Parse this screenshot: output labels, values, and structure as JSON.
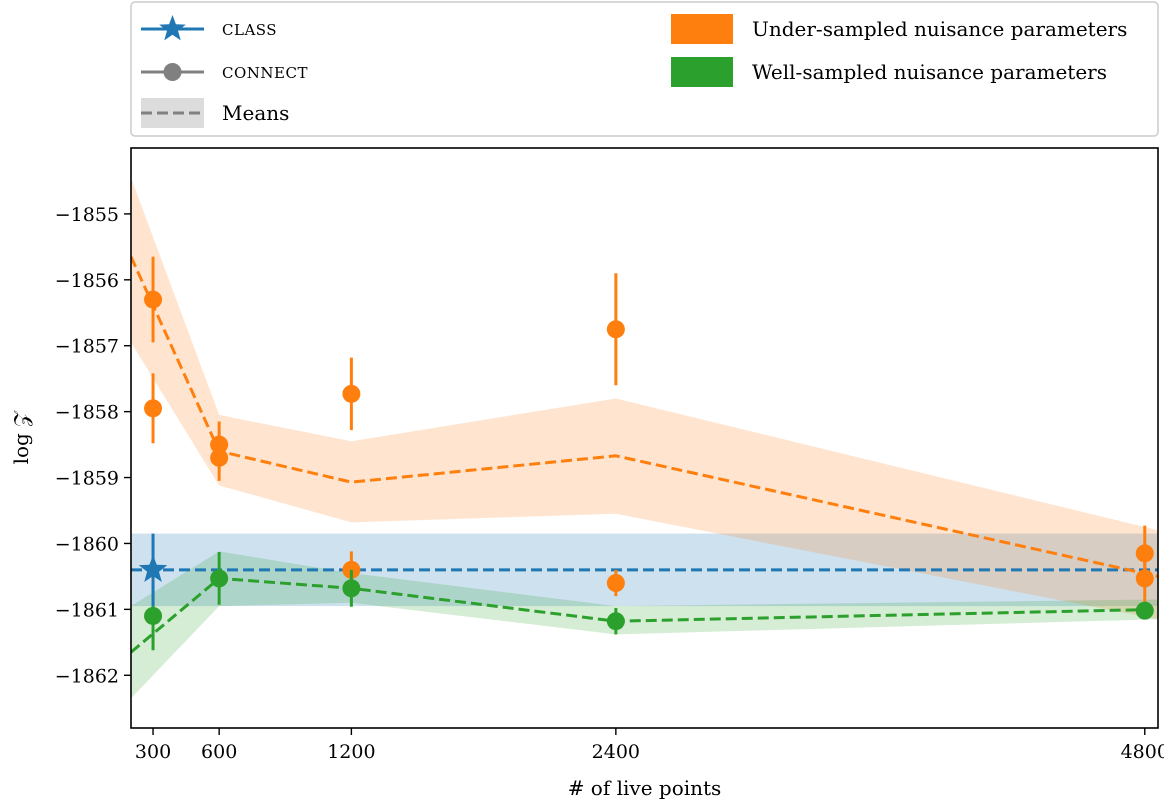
{
  "chart_data": {
    "type": "line",
    "xlabel": "# of live points",
    "ylabel": "log 𝒵",
    "xlim": [
      200,
      4860
    ],
    "ylim": [
      -1862.8,
      -1854.0
    ],
    "xticks": [
      300,
      600,
      1200,
      2400,
      4800
    ],
    "xtick_labels": [
      "300",
      "600",
      "1200",
      "2400",
      "4800"
    ],
    "yticks": [
      -1855,
      -1856,
      -1857,
      -1858,
      -1859,
      -1860,
      -1861,
      -1862
    ],
    "ytick_labels": [
      "−1855",
      "−1856",
      "−1857",
      "−1858",
      "−1859",
      "−1860",
      "−1861",
      "−1862"
    ],
    "grid": false,
    "legend_position": "top, above plot",
    "legend": {
      "class_label": "CLASS",
      "connect_label": "CONNECT",
      "means_label": "Means",
      "under_label": "Under-sampled nuisance parameters",
      "well_label": "Well-sampled nuisance parameters"
    },
    "colors": {
      "class": "#1f77b4",
      "under": "#ff7f0e",
      "well": "#2ca02c",
      "connect_legend": "#808080",
      "means_legend": "#808080"
    },
    "class_point": {
      "x": 300,
      "y": -1860.4,
      "yerr": 0.55
    },
    "class_mean": {
      "y": -1860.4,
      "band": [
        -1860.95,
        -1859.85
      ]
    },
    "under_sampled": {
      "points": [
        {
          "x": 300,
          "y": -1856.3,
          "yerr": 0.65
        },
        {
          "x": 300,
          "y": -1857.95,
          "yerr": 0.53
        },
        {
          "x": 600,
          "y": -1858.5,
          "yerr": 0.35
        },
        {
          "x": 600,
          "y": -1858.7,
          "yerr": 0.35
        },
        {
          "x": 1200,
          "y": -1857.73,
          "yerr": 0.55
        },
        {
          "x": 1200,
          "y": -1860.4,
          "yerr": 0.28
        },
        {
          "x": 2400,
          "y": -1856.75,
          "yerr": 0.85
        },
        {
          "x": 2400,
          "y": -1860.6,
          "yerr": 0.2
        },
        {
          "x": 4800,
          "y": -1860.15,
          "yerr": 0.42
        },
        {
          "x": 4800,
          "y": -1860.53,
          "yerr": 0.42
        }
      ],
      "mean": {
        "x": [
          200,
          600,
          1200,
          2400,
          4860
        ],
        "y": [
          -1855.65,
          -1858.6,
          -1859.07,
          -1858.67,
          -1860.5
        ],
        "lower": [
          -1856.95,
          -1859.12,
          -1859.68,
          -1859.55,
          -1861.15
        ],
        "upper": [
          -1854.45,
          -1858.05,
          -1858.45,
          -1857.8,
          -1859.8
        ]
      }
    },
    "well_sampled": {
      "points": [
        {
          "x": 300,
          "y": -1861.1,
          "yerr": 0.52
        },
        {
          "x": 600,
          "y": -1860.53,
          "yerr": 0.4
        },
        {
          "x": 1200,
          "y": -1860.68,
          "yerr": 0.28
        },
        {
          "x": 2400,
          "y": -1861.18,
          "yerr": 0.2
        },
        {
          "x": 4800,
          "y": -1861.02,
          "yerr": 0.12
        }
      ],
      "mean": {
        "x": [
          200,
          600,
          1200,
          2400,
          4860
        ],
        "y": [
          -1861.65,
          -1860.53,
          -1860.68,
          -1861.18,
          -1861.0
        ],
        "lower": [
          -1862.35,
          -1860.95,
          -1860.9,
          -1861.38,
          -1861.15
        ],
        "upper": [
          -1860.95,
          -1860.12,
          -1860.45,
          -1860.95,
          -1860.85
        ]
      }
    }
  }
}
